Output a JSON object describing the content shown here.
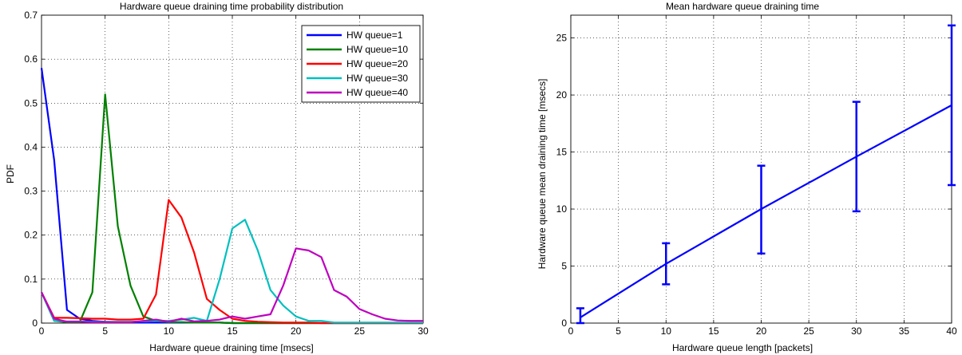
{
  "chart_data": [
    {
      "type": "line",
      "title": "Hardware queue draining time probability distribution",
      "xlabel": "Hardware queue draining time [msecs]",
      "ylabel": "PDF",
      "xlim": [
        0,
        30
      ],
      "ylim": [
        0,
        0.7
      ],
      "xticks": [
        "0",
        "5",
        "10",
        "15",
        "20",
        "25",
        "30"
      ],
      "yticks": [
        "0",
        "0.1",
        "0.2",
        "0.3",
        "0.4",
        "0.5",
        "0.6",
        "0.7"
      ],
      "grid": true,
      "legend_position": "top-right",
      "series": [
        {
          "name": "HW queue=1",
          "color": "#0000ff",
          "x": [
            0,
            1,
            2,
            3,
            4,
            5,
            6,
            7,
            8,
            9,
            10,
            11,
            12,
            13,
            14,
            15,
            16,
            17,
            18,
            19,
            20,
            21,
            22,
            23,
            24,
            25,
            26,
            27,
            28,
            29,
            30
          ],
          "y": [
            0.58,
            0.37,
            0.03,
            0.01,
            0.005,
            0.003,
            0.002,
            0.002,
            0.001,
            0.001,
            0.001,
            0.001,
            0.001,
            0.001,
            0.001,
            0,
            0,
            0,
            0,
            0,
            0,
            0,
            0,
            0,
            0,
            0,
            0,
            0,
            0,
            0,
            0
          ]
        },
        {
          "name": "HW queue=10",
          "color": "#008000",
          "x": [
            0,
            1,
            2,
            3,
            4,
            5,
            6,
            7,
            8,
            9,
            10,
            11,
            12,
            13,
            14,
            15,
            16,
            17,
            18,
            19,
            20,
            21,
            22,
            23,
            24,
            25,
            26,
            27,
            28,
            29,
            30
          ],
          "y": [
            0.07,
            0.005,
            0.002,
            0.002,
            0.07,
            0.52,
            0.22,
            0.085,
            0.015,
            0.005,
            0.002,
            0.002,
            0.001,
            0.001,
            0.001,
            0,
            0,
            0,
            0,
            0,
            0,
            0,
            0,
            0,
            0,
            0,
            0,
            0,
            0,
            0,
            0
          ]
        },
        {
          "name": "HW queue=20",
          "color": "#ff0000",
          "x": [
            0,
            1,
            2,
            3,
            4,
            5,
            6,
            7,
            8,
            9,
            10,
            11,
            12,
            13,
            14,
            15,
            16,
            17,
            18,
            19,
            20,
            21,
            22,
            23,
            24,
            25,
            26,
            27,
            28,
            29,
            30
          ],
          "y": [
            0.07,
            0.012,
            0.012,
            0.011,
            0.01,
            0.01,
            0.008,
            0.008,
            0.01,
            0.065,
            0.28,
            0.24,
            0.16,
            0.055,
            0.03,
            0.01,
            0.005,
            0.003,
            0.002,
            0.001,
            0.001,
            0.001,
            0,
            0,
            0,
            0,
            0,
            0,
            0,
            0,
            0
          ]
        },
        {
          "name": "HW queue=30",
          "color": "#00bfbf",
          "x": [
            0,
            1,
            2,
            3,
            4,
            5,
            6,
            7,
            8,
            9,
            10,
            11,
            12,
            13,
            14,
            15,
            16,
            17,
            18,
            19,
            20,
            21,
            22,
            23,
            24,
            25,
            26,
            27,
            28,
            29,
            30
          ],
          "y": [
            0.07,
            0.005,
            0.004,
            0.004,
            0.003,
            0.003,
            0.003,
            0.003,
            0.004,
            0.005,
            0.005,
            0.008,
            0.012,
            0.005,
            0.1,
            0.215,
            0.235,
            0.165,
            0.075,
            0.04,
            0.015,
            0.005,
            0.005,
            0.001,
            0.001,
            0.001,
            0.001,
            0.001,
            0.001,
            0.001,
            0.001
          ]
        },
        {
          "name": "HW queue=40",
          "color": "#bf00bf",
          "x": [
            0,
            1,
            2,
            3,
            4,
            5,
            6,
            7,
            8,
            9,
            10,
            11,
            12,
            13,
            14,
            15,
            16,
            17,
            18,
            19,
            20,
            21,
            22,
            23,
            24,
            25,
            26,
            27,
            28,
            29,
            30
          ],
          "y": [
            0.07,
            0.01,
            0.003,
            0.003,
            0.002,
            0.002,
            0.002,
            0.002,
            0.005,
            0.008,
            0.003,
            0.01,
            0.004,
            0.005,
            0.008,
            0.015,
            0.01,
            0.015,
            0.02,
            0.085,
            0.17,
            0.165,
            0.15,
            0.075,
            0.06,
            0.032,
            0.02,
            0.01,
            0.006,
            0.005,
            0.005
          ]
        }
      ]
    },
    {
      "type": "line",
      "title": "Mean hardware queue draining time",
      "xlabel": "Hardware queue length [packets]",
      "ylabel": "Hardware queue mean draining time [msecs]",
      "xlim": [
        0,
        40
      ],
      "ylim": [
        0,
        27
      ],
      "xticks": [
        "0",
        "5",
        "10",
        "15",
        "20",
        "25",
        "30",
        "35",
        "40"
      ],
      "yticks": [
        "0",
        "5",
        "10",
        "15",
        "20",
        "25"
      ],
      "grid": true,
      "series": [
        {
          "color": "#0000ff",
          "x": [
            1,
            10,
            20,
            30,
            40
          ],
          "y": [
            0.5,
            5.2,
            10,
            14.6,
            19.1
          ]
        }
      ],
      "error_bars": [
        {
          "x": 1,
          "low": 0,
          "high": 1.3
        },
        {
          "x": 10,
          "low": 3.4,
          "high": 7.0
        },
        {
          "x": 20,
          "low": 6.1,
          "high": 13.8
        },
        {
          "x": 30,
          "low": 9.8,
          "high": 19.4
        },
        {
          "x": 40,
          "low": 12.1,
          "high": 26.1
        }
      ]
    }
  ]
}
